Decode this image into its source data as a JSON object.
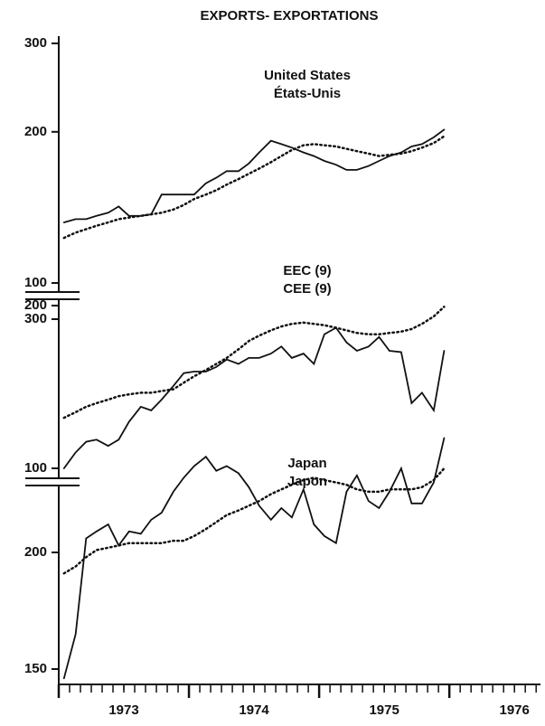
{
  "title": "EXPORTS- EXPORTATIONS",
  "chart_data": [
    {
      "type": "line",
      "title": "United States",
      "subtitle": "États-Unis",
      "x": [
        1973.04,
        1973.13,
        1973.21,
        1973.29,
        1973.38,
        1973.46,
        1973.54,
        1973.63,
        1973.71,
        1973.79,
        1973.88,
        1973.96,
        1974.04,
        1974.13,
        1974.21,
        1974.29,
        1974.38,
        1974.46,
        1974.54,
        1974.63,
        1974.71,
        1974.79,
        1974.88,
        1974.96,
        1975.04,
        1975.13,
        1975.21,
        1975.29,
        1975.38,
        1975.46,
        1975.54,
        1975.63,
        1975.71,
        1975.79,
        1975.88,
        1975.96
      ],
      "xlim": [
        1973,
        1976.7
      ],
      "ylim": [
        100,
        300
      ],
      "yticks": [
        100,
        200,
        300
      ],
      "log": true,
      "series": [
        {
          "color": "#111111",
          "style": "solid",
          "values": [
            132,
            134,
            134,
            136,
            138,
            142,
            136,
            136,
            137,
            150,
            150,
            150,
            150,
            158,
            162,
            167,
            167,
            173,
            182,
            192,
            189,
            186,
            182,
            179,
            175,
            172,
            168,
            168,
            171,
            175,
            179,
            182,
            187,
            189,
            195,
            202
          ]
        },
        {
          "color": "#111111",
          "style": "dotted",
          "values": [
            123,
            126,
            128,
            130,
            132,
            134,
            135,
            136,
            137,
            138,
            140,
            143,
            147,
            150,
            153,
            157,
            161,
            165,
            169,
            174,
            179,
            184,
            188,
            189,
            188,
            187,
            185,
            183,
            181,
            179,
            180,
            181,
            183,
            186,
            190,
            196
          ]
        }
      ]
    },
    {
      "type": "line",
      "title": "EEC (9)",
      "subtitle": "CEE (9)",
      "x": [
        1973.04,
        1973.13,
        1973.21,
        1973.29,
        1973.38,
        1973.46,
        1973.54,
        1973.63,
        1973.71,
        1973.79,
        1973.88,
        1973.96,
        1974.04,
        1974.13,
        1974.21,
        1974.29,
        1974.38,
        1974.46,
        1974.54,
        1974.63,
        1974.71,
        1974.79,
        1974.88,
        1974.96,
        1975.04,
        1975.13,
        1975.21,
        1975.29,
        1975.38,
        1975.46,
        1975.54,
        1975.63,
        1975.71,
        1975.79,
        1975.88,
        1975.96
      ],
      "xlim": [
        1973,
        1976.7
      ],
      "ylim": [
        100,
        200
      ],
      "yticks": [
        100,
        200
      ],
      "log": true,
      "series": [
        {
          "color": "#111111",
          "style": "solid",
          "values": [
            100,
            107,
            112,
            113,
            110,
            113,
            122,
            130,
            128,
            134,
            142,
            150,
            151,
            151,
            154,
            159,
            156,
            160,
            160,
            163,
            168,
            160,
            163,
            156,
            177,
            182,
            171,
            165,
            168,
            175,
            165,
            164,
            132,
            138,
            128,
            165
          ]
        },
        {
          "color": "#111111",
          "style": "dotted",
          "values": [
            124,
            127,
            130,
            132,
            134,
            136,
            137,
            138,
            138,
            139,
            140,
            144,
            148,
            152,
            156,
            160,
            166,
            172,
            176,
            180,
            183,
            185,
            186,
            185,
            184,
            182,
            180,
            178,
            177,
            177,
            178,
            179,
            181,
            185,
            191,
            199
          ]
        }
      ]
    },
    {
      "type": "line",
      "title": "Japan",
      "subtitle": "Japon",
      "x": [
        1973.04,
        1973.13,
        1973.21,
        1973.29,
        1973.38,
        1973.46,
        1973.54,
        1973.63,
        1973.71,
        1973.79,
        1973.88,
        1973.96,
        1974.04,
        1974.13,
        1974.21,
        1974.29,
        1974.38,
        1974.46,
        1974.54,
        1974.63,
        1974.71,
        1974.79,
        1974.88,
        1974.96,
        1975.04,
        1975.13,
        1975.21,
        1975.29,
        1975.38,
        1975.46,
        1975.54,
        1975.63,
        1975.71,
        1975.79,
        1975.88,
        1975.96
      ],
      "xlim": [
        1973,
        1976.7
      ],
      "ylim": [
        150,
        300
      ],
      "yticks": [
        150,
        200,
        300
      ],
      "log": false,
      "xticks": [
        {
          "value": 1973.5,
          "label": "1973"
        },
        {
          "value": 1974.5,
          "label": "1974"
        },
        {
          "value": 1975.5,
          "label": "1975"
        },
        {
          "value": 1976.5,
          "label": "1976"
        }
      ],
      "series": [
        {
          "color": "#111111",
          "style": "solid",
          "values": [
            146,
            165,
            206,
            209,
            212,
            203,
            209,
            208,
            214,
            217,
            226,
            232,
            237,
            241,
            235,
            237,
            234,
            228,
            220,
            214,
            219,
            215,
            227,
            212,
            207,
            204,
            226,
            233,
            222,
            219,
            226,
            236,
            221,
            221,
            230,
            249
          ]
        },
        {
          "color": "#111111",
          "style": "dotted",
          "values": [
            191,
            194,
            198,
            201,
            202,
            203,
            204,
            204,
            204,
            204,
            205,
            205,
            207,
            210,
            213,
            216,
            218,
            220,
            222,
            225,
            227,
            229,
            231,
            232,
            231,
            230,
            229,
            227,
            226,
            226,
            227,
            227,
            227,
            228,
            231,
            236
          ]
        }
      ]
    }
  ]
}
